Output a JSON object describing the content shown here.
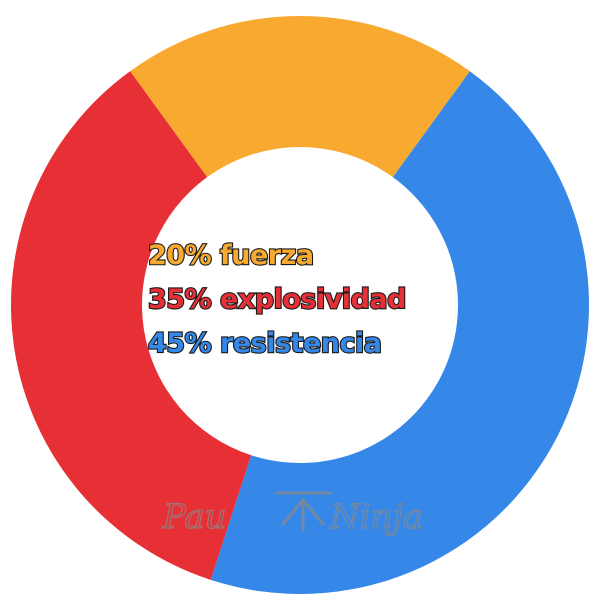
{
  "chart_data": {
    "type": "pie",
    "style": "donut",
    "categories": [
      "fuerza",
      "explosividad",
      "resistencia"
    ],
    "values": [
      20,
      35,
      45
    ],
    "unit": "%",
    "colors": [
      "#f8a92f",
      "#e63036",
      "#3587e8"
    ],
    "center_labels": [
      {
        "text": "20% fuerza",
        "color": "#f8a92f"
      },
      {
        "text": "35% explosividad",
        "color": "#e63036"
      },
      {
        "text": "45% resistencia",
        "color": "#3587e8"
      }
    ]
  },
  "watermark": {
    "left_text": "Pau",
    "right_text": "Ninja"
  }
}
